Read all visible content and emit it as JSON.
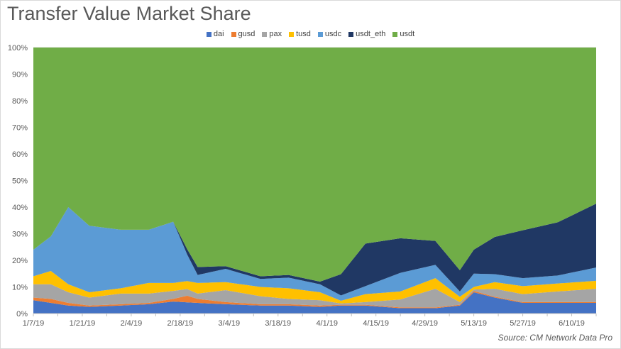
{
  "title": "Transfer Value Market Share",
  "source": "Source: CM Network Data Pro",
  "chart_data": {
    "type": "area",
    "stacked": true,
    "percent": true,
    "title": "Transfer Value Market Share",
    "ylim": [
      0,
      100
    ],
    "y_ticks": [
      "0%",
      "10%",
      "20%",
      "30%",
      "40%",
      "50%",
      "60%",
      "70%",
      "80%",
      "90%",
      "100%"
    ],
    "x_ticks": [
      "1/7/19",
      "1/21/19",
      "2/4/19",
      "2/18/19",
      "3/4/19",
      "3/18/19",
      "4/1/19",
      "4/15/19",
      "4/29/19",
      "5/13/19",
      "5/27/19",
      "6/10/19"
    ],
    "x_start": "1/7/19",
    "x_end": "6/17/19",
    "legend_position": "top",
    "grid": true,
    "series": [
      {
        "name": "dai",
        "color": "#4472c4",
        "points": [
          [
            0,
            5
          ],
          [
            5,
            4
          ],
          [
            10,
            3
          ],
          [
            16,
            2.5
          ],
          [
            25,
            3
          ],
          [
            33,
            3.5
          ],
          [
            40,
            4.5
          ],
          [
            47,
            4
          ],
          [
            55,
            3.5
          ],
          [
            65,
            3
          ],
          [
            73,
            3
          ],
          [
            82,
            2.5
          ],
          [
            88,
            3
          ],
          [
            95,
            3
          ],
          [
            105,
            2
          ],
          [
            115,
            2
          ],
          [
            122,
            3
          ],
          [
            126,
            8
          ],
          [
            132,
            6
          ],
          [
            140,
            4
          ],
          [
            150,
            4
          ],
          [
            161,
            4
          ]
        ]
      },
      {
        "name": "gusd",
        "color": "#ed7d31",
        "points": [
          [
            0,
            1
          ],
          [
            5,
            1.5
          ],
          [
            10,
            1
          ],
          [
            16,
            0.5
          ],
          [
            25,
            0.5
          ],
          [
            33,
            0.5
          ],
          [
            40,
            1
          ],
          [
            44,
            2.5
          ],
          [
            47,
            1.5
          ],
          [
            55,
            0.8
          ],
          [
            65,
            0.5
          ],
          [
            73,
            0.5
          ],
          [
            82,
            0.5
          ],
          [
            88,
            0.3
          ],
          [
            95,
            0.3
          ],
          [
            105,
            0.3
          ],
          [
            115,
            0.3
          ],
          [
            122,
            0.3
          ],
          [
            126,
            0.5
          ],
          [
            132,
            0.3
          ],
          [
            140,
            0.3
          ],
          [
            150,
            0.3
          ],
          [
            161,
            0.3
          ]
        ]
      },
      {
        "name": "pax",
        "color": "#a5a5a5",
        "points": [
          [
            0,
            5
          ],
          [
            5,
            5.5
          ],
          [
            10,
            4
          ],
          [
            16,
            3
          ],
          [
            25,
            4
          ],
          [
            33,
            3.5
          ],
          [
            40,
            3
          ],
          [
            44,
            2.5
          ],
          [
            47,
            2
          ],
          [
            55,
            4.5
          ],
          [
            65,
            3
          ],
          [
            73,
            2
          ],
          [
            82,
            2
          ],
          [
            88,
            0.5
          ],
          [
            95,
            1
          ],
          [
            105,
            3
          ],
          [
            115,
            7
          ],
          [
            122,
            1
          ],
          [
            126,
            0.5
          ],
          [
            132,
            3
          ],
          [
            140,
            3
          ],
          [
            150,
            4
          ],
          [
            161,
            5
          ]
        ]
      },
      {
        "name": "tusd",
        "color": "#ffc000",
        "points": [
          [
            0,
            3
          ],
          [
            5,
            5
          ],
          [
            10,
            3
          ],
          [
            16,
            2
          ],
          [
            25,
            2
          ],
          [
            33,
            4
          ],
          [
            40,
            3
          ],
          [
            44,
            3
          ],
          [
            47,
            4
          ],
          [
            55,
            3
          ],
          [
            65,
            3.5
          ],
          [
            73,
            4
          ],
          [
            82,
            3
          ],
          [
            88,
            1
          ],
          [
            95,
            3
          ],
          [
            105,
            3
          ],
          [
            115,
            4
          ],
          [
            122,
            2
          ],
          [
            126,
            1
          ],
          [
            132,
            2.5
          ],
          [
            140,
            3
          ],
          [
            150,
            3
          ],
          [
            161,
            3
          ]
        ]
      },
      {
        "name": "usdc",
        "color": "#5b9bd5",
        "points": [
          [
            0,
            10
          ],
          [
            5,
            13
          ],
          [
            10,
            29
          ],
          [
            16,
            25
          ],
          [
            25,
            22
          ],
          [
            33,
            20
          ],
          [
            40,
            23
          ],
          [
            44,
            10
          ],
          [
            47,
            3
          ],
          [
            55,
            5
          ],
          [
            65,
            3
          ],
          [
            73,
            4
          ],
          [
            82,
            3
          ],
          [
            88,
            2
          ],
          [
            95,
            3
          ],
          [
            105,
            7
          ],
          [
            115,
            5
          ],
          [
            122,
            2
          ],
          [
            126,
            5
          ],
          [
            132,
            3
          ],
          [
            140,
            3
          ],
          [
            150,
            3
          ],
          [
            161,
            5
          ]
        ]
      },
      {
        "name": "usdt_eth",
        "color": "#203864",
        "points": [
          [
            0,
            0
          ],
          [
            5,
            0
          ],
          [
            10,
            0
          ],
          [
            16,
            0
          ],
          [
            25,
            0
          ],
          [
            33,
            0
          ],
          [
            40,
            0
          ],
          [
            44,
            2
          ],
          [
            47,
            3
          ],
          [
            55,
            1
          ],
          [
            65,
            1
          ],
          [
            73,
            1
          ],
          [
            82,
            1
          ],
          [
            88,
            8
          ],
          [
            95,
            16
          ],
          [
            105,
            13
          ],
          [
            115,
            9
          ],
          [
            122,
            8
          ],
          [
            126,
            9
          ],
          [
            132,
            14
          ],
          [
            140,
            18
          ],
          [
            150,
            20
          ],
          [
            161,
            24
          ]
        ]
      },
      {
        "name": "usdt",
        "color": "#70ad47",
        "fill_to_top": true,
        "points": [
          [
            0,
            76
          ],
          [
            5,
            71
          ],
          [
            10,
            60
          ],
          [
            16,
            67
          ],
          [
            25,
            68.5
          ],
          [
            33,
            68.5
          ],
          [
            40,
            65.5
          ],
          [
            44,
            78
          ],
          [
            47,
            82.5
          ],
          [
            55,
            82.2
          ],
          [
            65,
            86
          ],
          [
            73,
            85.5
          ],
          [
            82,
            86.5
          ],
          [
            88,
            84.2
          ],
          [
            95,
            73.7
          ],
          [
            105,
            71.7
          ],
          [
            115,
            72.7
          ],
          [
            122,
            83.7
          ],
          [
            126,
            76
          ],
          [
            132,
            74.2
          ],
          [
            140,
            68.7
          ],
          [
            150,
            65.7
          ],
          [
            161,
            58.7
          ]
        ]
      }
    ]
  }
}
